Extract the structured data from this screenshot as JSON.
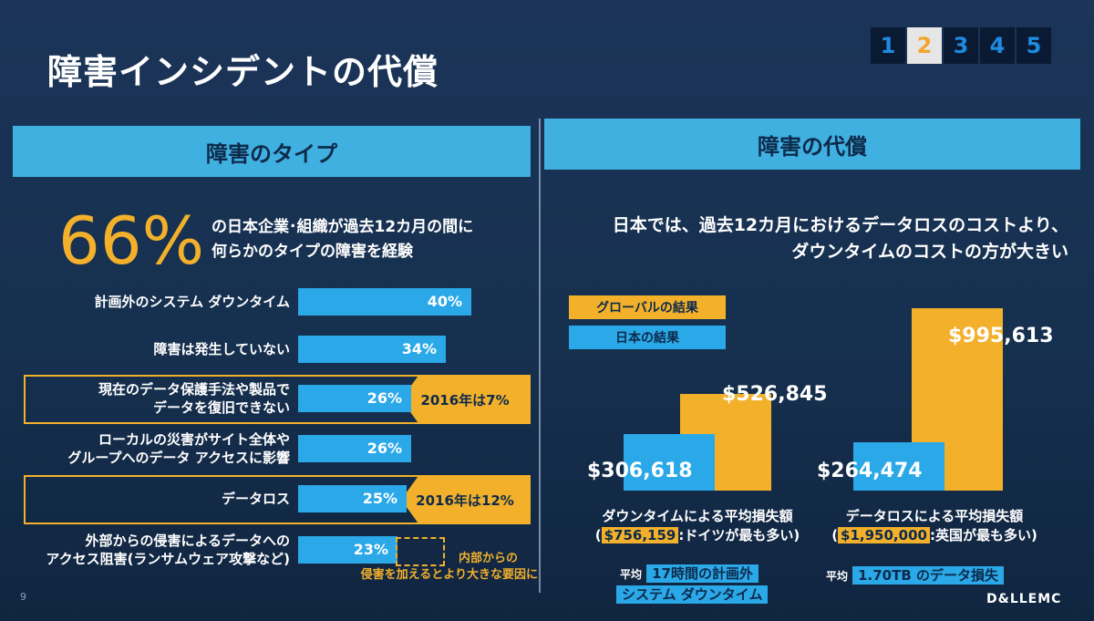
{
  "title": "障害インシデントの代償",
  "pager": [
    "1",
    "2",
    "3",
    "4",
    "5"
  ],
  "pager_active_index": 1,
  "page_number": "9",
  "logo": "D&LLEMC",
  "colors": {
    "accent_yellow": "#f2b02b",
    "accent_blue": "#2aa8e8",
    "header_blue": "#3fb0e0"
  },
  "left": {
    "header": "障害のタイプ",
    "big_percent": "66%",
    "big_note_line1": "の日本企業･組織が過去12カ月の間に",
    "big_note_line2": "何らかのタイプの障害を経験",
    "internal_note_line1": "内部からの",
    "internal_note_line2": "侵害を加えるとより大きな要因に"
  },
  "right": {
    "header": "障害の代償",
    "note_line1": "日本では、過去12カ月におけるデータロスのコストより、",
    "note_line2": "ダウンタイムのコストの方が大きい",
    "legend_global": "グローバルの結果",
    "legend_japan": "日本の結果",
    "downtime_label": "ダウンタイムによる平均損失額",
    "downtime_sub_value": "$756,159",
    "downtime_sub_text": ":ドイツが最も多い)",
    "dataloss_label": "データロスによる平均損失額",
    "dataloss_sub_value": "$1,950,000",
    "dataloss_sub_text": ":英国が最も多い)",
    "paren_open": "(",
    "avg_label": "平均",
    "downtime_avg_line1": "17時間の計画外",
    "downtime_avg_line2": "システム ダウンタイム",
    "dataloss_avg": "1.70TB のデータ損失"
  },
  "chart_data": [
    {
      "type": "bar",
      "orientation": "horizontal",
      "categories": [
        "計画外のシステム ダウンタイム",
        "障害は発生していない",
        "現在のデータ保護手法や製品で データを復旧できない",
        "ローカルの災害がサイト全体や グループへのデータ アクセスに影響",
        "データロス",
        "外部からの侵害によるデータへの アクセス阻害(ランサムウェア攻撃など)"
      ],
      "category_lines": [
        [
          "計画外のシステム ダウンタイム"
        ],
        [
          "障害は発生していない"
        ],
        [
          "現在のデータ保護手法や製品で",
          "データを復旧できない"
        ],
        [
          "ローカルの災害がサイト全体や",
          "グループへのデータ アクセスに影響"
        ],
        [
          "データロス"
        ],
        [
          "外部からの侵害によるデータへの",
          "アクセス阻害(ランサムウェア攻撃など)"
        ]
      ],
      "values": [
        40,
        34,
        26,
        26,
        25,
        23
      ],
      "value_labels": [
        "40%",
        "34%",
        "26%",
        "26%",
        "25%",
        "23%"
      ],
      "annotations": [
        "",
        "",
        "2016年は7%",
        "",
        "2016年は12%",
        ""
      ],
      "highlighted": [
        false,
        false,
        true,
        false,
        true,
        false
      ],
      "xlim": [
        0,
        40
      ]
    },
    {
      "type": "bar",
      "categories": [
        "ダウンタイムによる平均損失額",
        "データロスによる平均損失額"
      ],
      "series": [
        {
          "name": "日本の結果",
          "values": [
            306618,
            264474
          ],
          "labels": [
            "$306,618",
            "$264,474"
          ],
          "color": "#2aa8e8"
        },
        {
          "name": "グローバルの結果",
          "values": [
            526845,
            995613
          ],
          "labels": [
            "$526,845",
            "$995,613"
          ],
          "color": "#f2b02b"
        }
      ],
      "ylim": [
        0,
        995613
      ],
      "legend": "top-left"
    }
  ]
}
